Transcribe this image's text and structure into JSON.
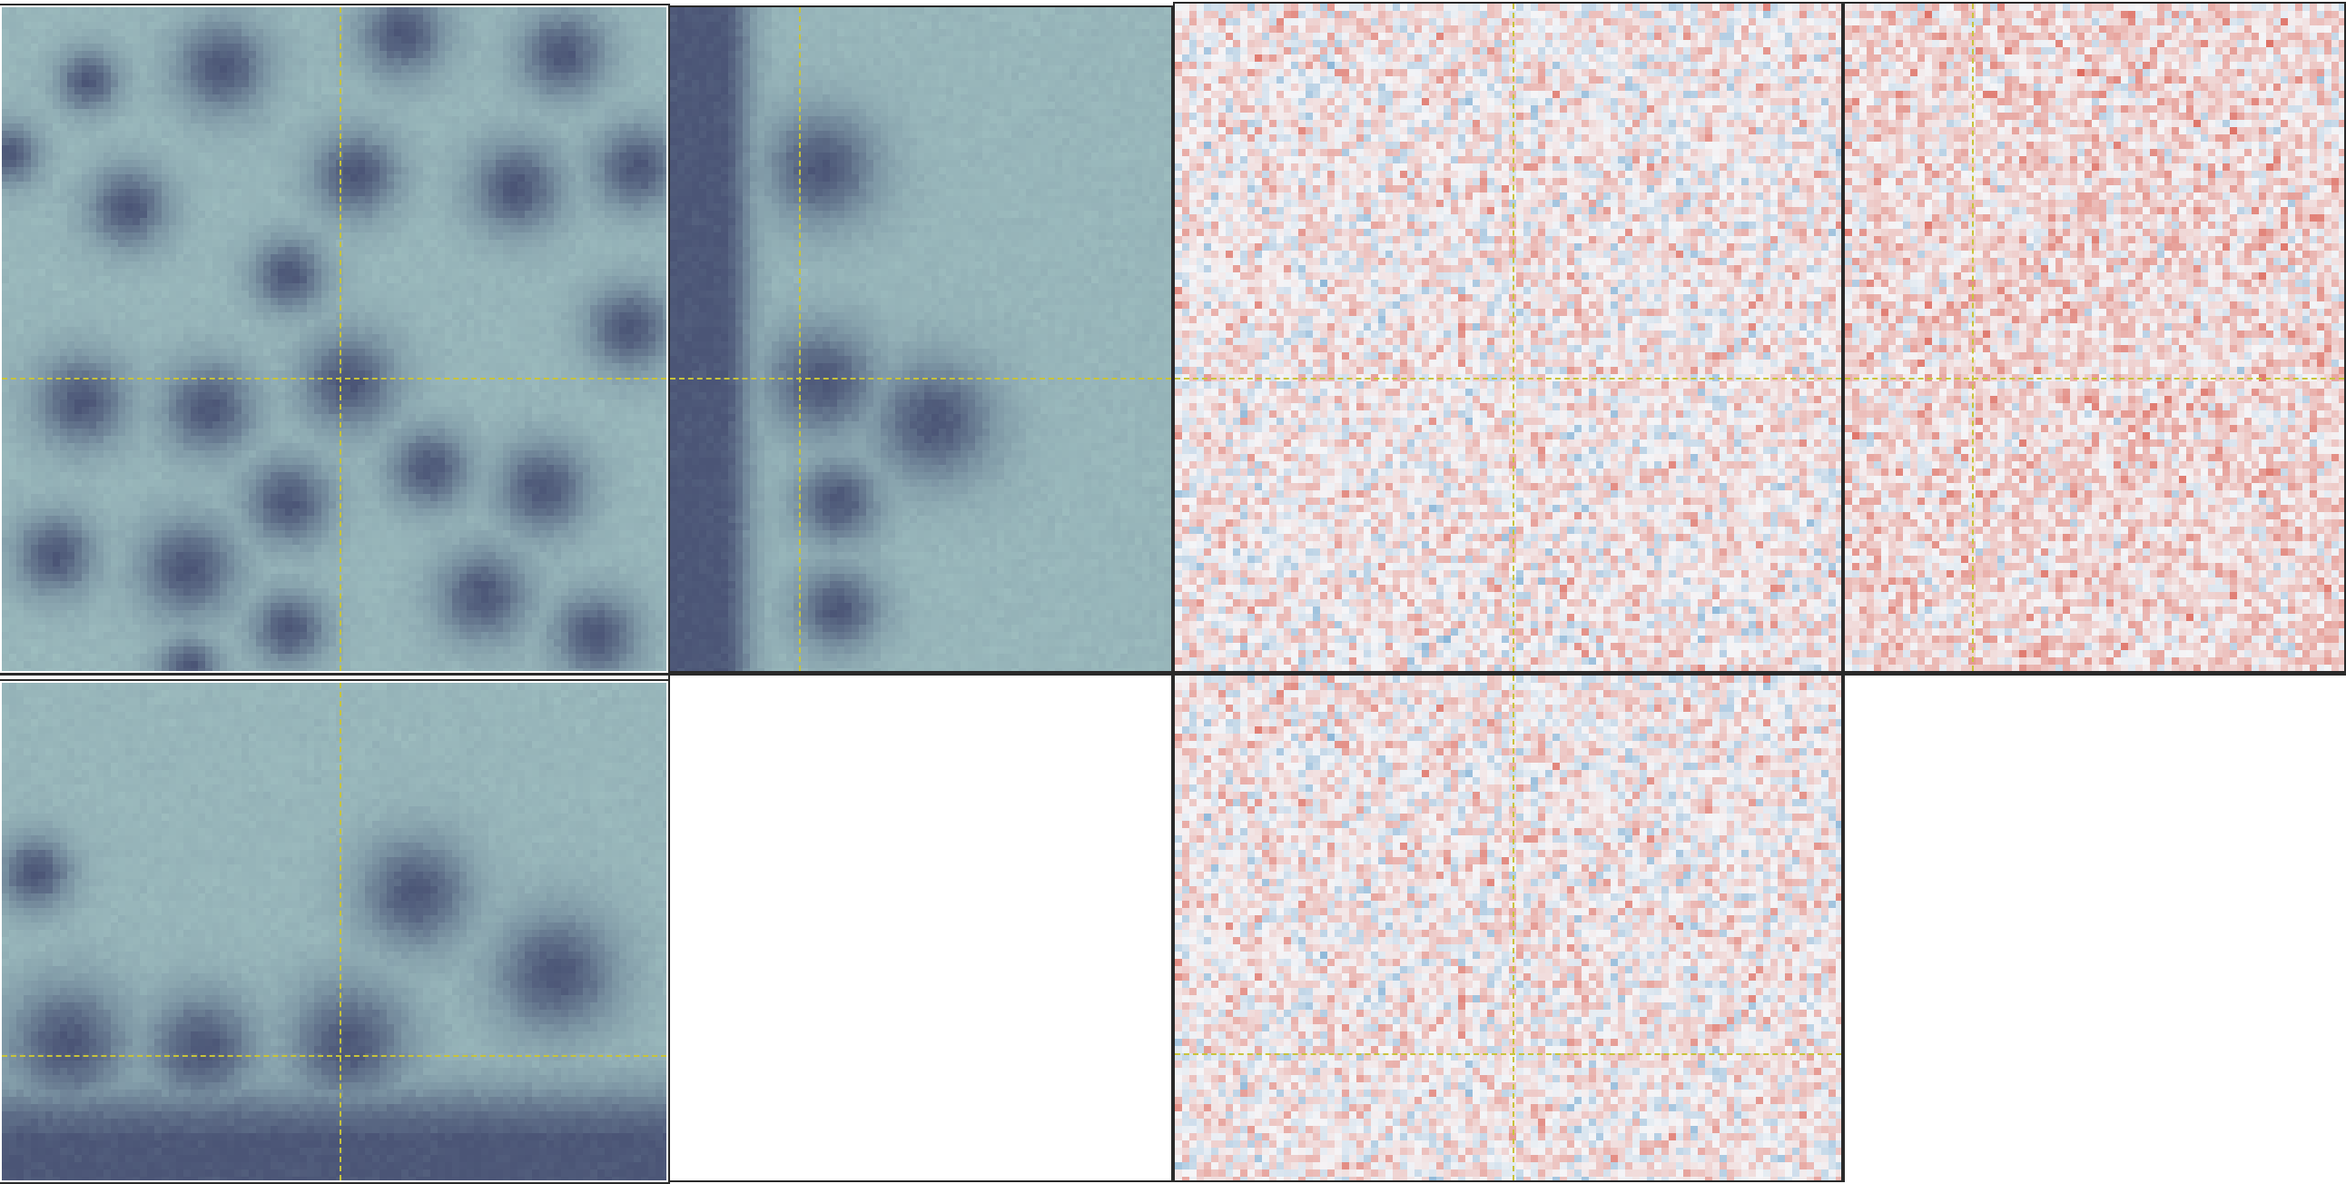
{
  "viewer": {
    "crosshair_color": "#c9c43a",
    "colormaps": {
      "bone_teal": [
        "#4b5576",
        "#7e97a5",
        "#a6c7c6"
      ],
      "red_blue": [
        "#3f89c1",
        "#f5f5f7",
        "#d84a3a"
      ]
    },
    "panels": [
      {
        "id": "image-xy",
        "colormap": "bone_teal",
        "pattern": "blobs_dense",
        "crosshair": [
          0.505,
          0.555
        ]
      },
      {
        "id": "image-yz",
        "colormap": "bone_teal",
        "pattern": "edge_left",
        "crosshair": [
          0.255,
          0.555
        ]
      },
      {
        "id": "residual-xy",
        "colormap": "red_blue",
        "pattern": "noise",
        "crosshair": [
          0.505,
          0.555
        ]
      },
      {
        "id": "residual-yz",
        "colormap": "red_blue",
        "pattern": "noise_warm",
        "crosshair": [
          0.255,
          0.555
        ]
      },
      {
        "id": "image-xz",
        "colormap": "bone_teal",
        "pattern": "blobs_bottom",
        "crosshair": [
          0.505,
          0.74
        ]
      },
      {
        "id": "residual-xz",
        "colormap": "red_blue",
        "pattern": "noise",
        "crosshair": [
          0.505,
          0.74
        ]
      }
    ]
  }
}
